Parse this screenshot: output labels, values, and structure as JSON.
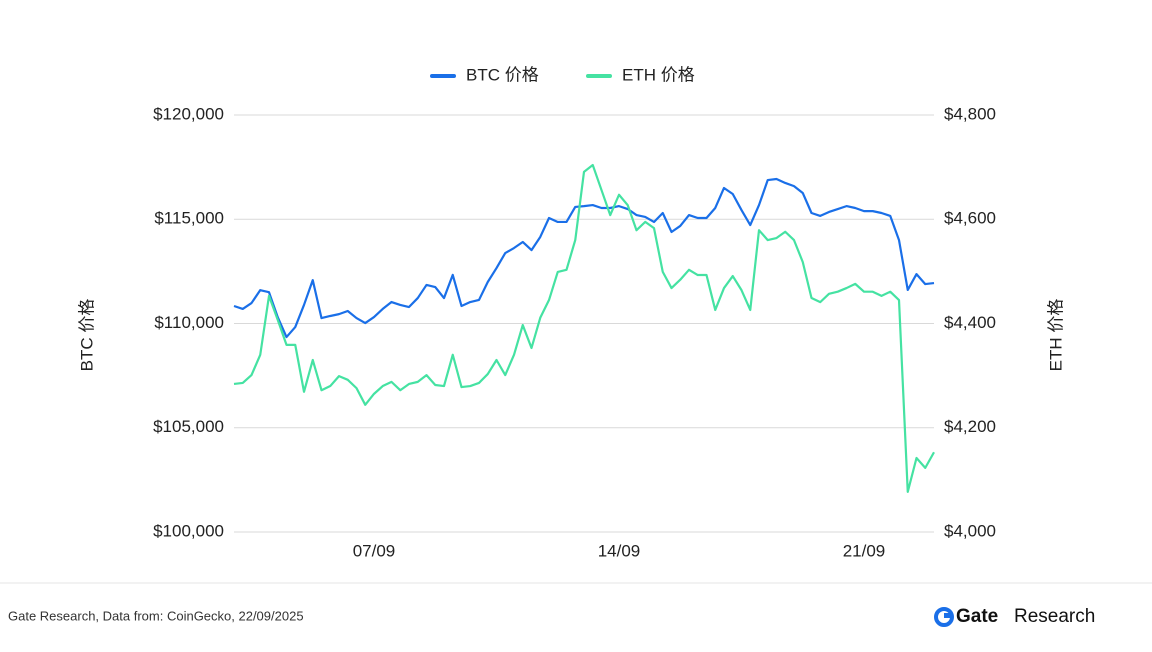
{
  "chart_data": {
    "type": "line",
    "categories": [
      null,
      null,
      null,
      null,
      null,
      null,
      null,
      null,
      null,
      null,
      null,
      null,
      null,
      null,
      null,
      null,
      "07/09",
      null,
      null,
      null,
      null,
      null,
      null,
      null,
      null,
      null,
      null,
      null,
      null,
      null,
      null,
      null,
      null,
      null,
      null,
      null,
      null,
      null,
      null,
      null,
      null,
      null,
      null,
      null,
      "14/09",
      null,
      null,
      null,
      null,
      null,
      null,
      null,
      null,
      null,
      null,
      null,
      null,
      null,
      null,
      null,
      null,
      null,
      null,
      null,
      null,
      null,
      null,
      null,
      null,
      null,
      null,
      null,
      "21/09",
      null,
      null,
      null,
      null,
      null,
      null,
      null,
      null
    ],
    "y_label": "BTC 价格",
    "y2_label": "ETH 价格",
    "ylim": [
      100000,
      120000
    ],
    "yticks": [
      {
        "value": 100000,
        "label": "$100,000"
      },
      {
        "value": 105000,
        "label": "$105,000"
      },
      {
        "value": 110000,
        "label": "$110,000"
      },
      {
        "value": 115000,
        "label": "$115,000"
      },
      {
        "value": 120000,
        "label": "$120,000"
      }
    ],
    "y2lim": [
      4000,
      4800
    ],
    "y2ticks": [
      {
        "value": 4000,
        "label": "$4,000"
      },
      {
        "value": 4200,
        "label": "$4,200"
      },
      {
        "value": 4400,
        "label": "$4,400"
      },
      {
        "value": 4600,
        "label": "$4,600"
      },
      {
        "value": 4800,
        "label": "$4,800"
      }
    ],
    "grid": true,
    "legend": "top",
    "series": [
      {
        "name": "BTC 价格",
        "color": "#1a6fe8",
        "values": [
          110840,
          110700,
          110980,
          111600,
          111500,
          110300,
          109350,
          109830,
          110890,
          112080,
          110260,
          110360,
          110450,
          110600,
          110260,
          110020,
          110310,
          110700,
          111030,
          110890,
          110790,
          111220,
          111850,
          111750,
          111220,
          112330,
          110840,
          111030,
          111130,
          111990,
          112660,
          113380,
          113620,
          113910,
          113520,
          114150,
          115060,
          114870,
          114870,
          115590,
          115630,
          115680,
          115540,
          115540,
          115630,
          115490,
          115200,
          115110,
          114870,
          115300,
          114390,
          114680,
          115200,
          115060,
          115060,
          115540,
          116500,
          116210,
          115440,
          114720,
          115680,
          116880,
          116930,
          116740,
          116590,
          116260,
          115300,
          115160,
          115350,
          115490,
          115630,
          115540,
          115390,
          115390,
          115300,
          115160,
          114000,
          111610,
          112370,
          111890,
          111940
        ]
      },
      {
        "name": "ETH 价格",
        "color": "#45e2a2",
        "axis": "y2",
        "values": [
          4284,
          4286,
          4301,
          4340,
          4453,
          4407,
          4359,
          4359,
          4269,
          4330,
          4272,
          4280,
          4299,
          4292,
          4276,
          4244,
          4265,
          4280,
          4288,
          4272,
          4284,
          4288,
          4301,
          4282,
          4280,
          4340,
          4278,
          4280,
          4286,
          4303,
          4330,
          4301,
          4340,
          4397,
          4353,
          4411,
          4445,
          4499,
          4503,
          4560,
          4691,
          4704,
          4656,
          4608,
          4647,
          4627,
          4579,
          4595,
          4583,
          4499,
          4468,
          4484,
          4503,
          4493,
          4493,
          4426,
          4468,
          4491,
          4464,
          4426,
          4579,
          4560,
          4564,
          4576,
          4560,
          4518,
          4449,
          4441,
          4457,
          4461,
          4468,
          4476,
          4461,
          4461,
          4453,
          4461,
          4445,
          4077,
          4142,
          4123,
          4153
        ]
      }
    ]
  },
  "footer": {
    "source": "Gate Research, Data from: CoinGecko, 22/09/2025",
    "brand": "Gate",
    "brand_suffix": "Research"
  }
}
